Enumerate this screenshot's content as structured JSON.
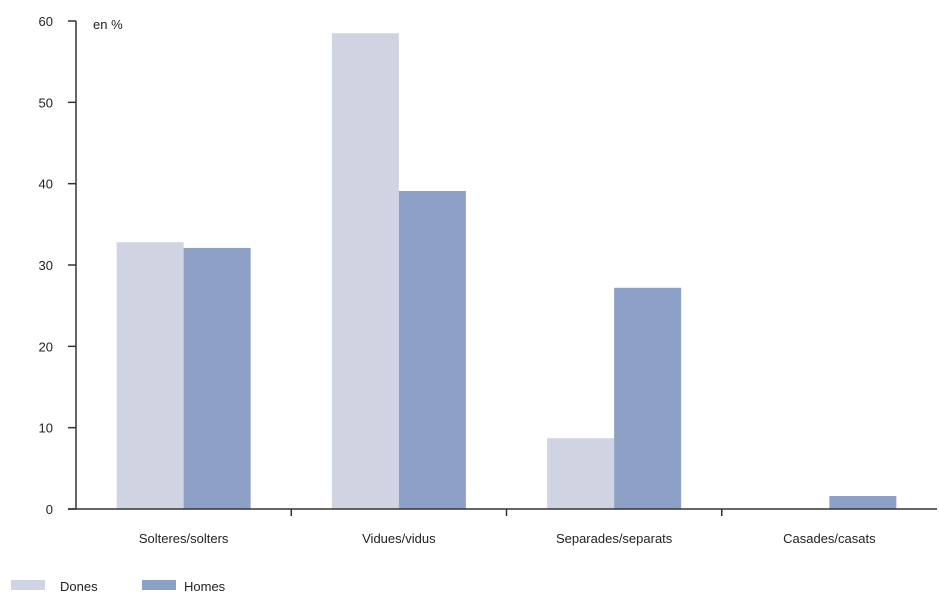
{
  "chart_data": {
    "type": "bar",
    "title": "",
    "unit_label": "en %",
    "xlabel": "",
    "ylabel": "",
    "ylim": [
      0,
      60
    ],
    "yticks": [
      0,
      10,
      20,
      30,
      40,
      50,
      60
    ],
    "grid": false,
    "legend_position": "bottom-left",
    "categories": [
      "Solteres/solters",
      "Vidues/vidus",
      "Separades/separats",
      "Casades/casats"
    ],
    "series": [
      {
        "name": "Dones",
        "color": "#d0d3e1",
        "values": [
          32.8,
          58.5,
          8.7,
          0
        ]
      },
      {
        "name": "Homes",
        "color": "#8da0c5",
        "values": [
          32.1,
          39.1,
          27.2,
          1.6
        ]
      }
    ]
  }
}
